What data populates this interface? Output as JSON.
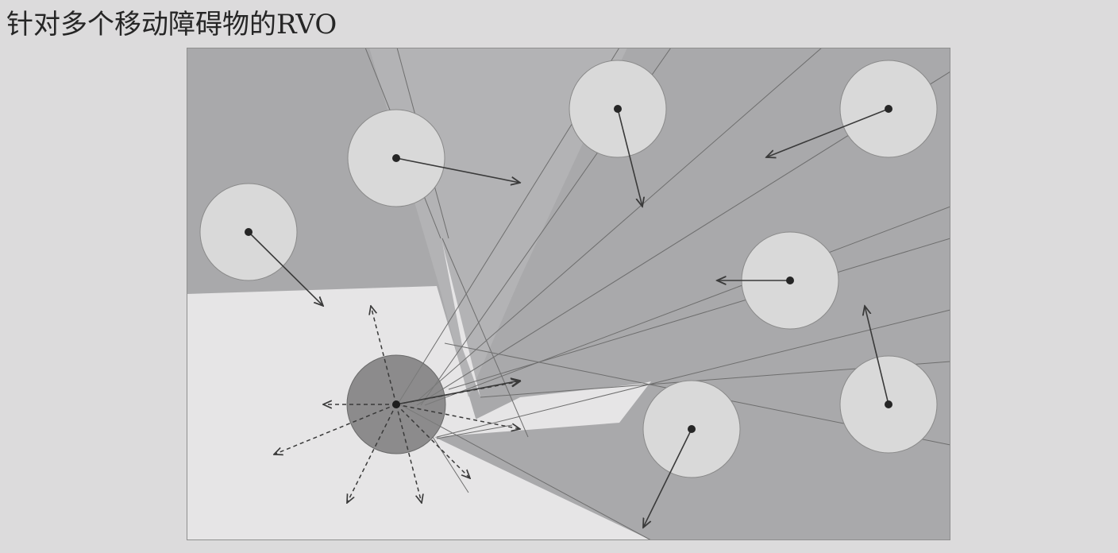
{
  "slide": {
    "title": "针对多个移动障碍物的RVO"
  },
  "figure": {
    "colors": {
      "background": "#dcdbdc",
      "frame": "#8f8f8f",
      "cone_fill": "#a9a9ab",
      "cone_fill_light": "#b6b6b8",
      "free_space": "#e6e5e6",
      "obstacle_fill": "#d9d9d9",
      "obstacle_stroke": "#8a8a8a",
      "agent_fill": "#7b7b7b",
      "arrow": "#3a3a3a",
      "cone_line": "#6e6e6e"
    },
    "agent": {
      "icon": "agent-disc",
      "candidate_velocity_count": 8
    },
    "obstacles": [
      {
        "id": "obstacle-1",
        "icon": "obstacle-disc"
      },
      {
        "id": "obstacle-2",
        "icon": "obstacle-disc"
      },
      {
        "id": "obstacle-3",
        "icon": "obstacle-disc"
      },
      {
        "id": "obstacle-4",
        "icon": "obstacle-disc"
      },
      {
        "id": "obstacle-5",
        "icon": "obstacle-disc"
      },
      {
        "id": "obstacle-6",
        "icon": "obstacle-disc"
      },
      {
        "id": "obstacle-7",
        "icon": "obstacle-disc"
      },
      {
        "id": "obstacle-8",
        "icon": "obstacle-disc"
      }
    ]
  }
}
